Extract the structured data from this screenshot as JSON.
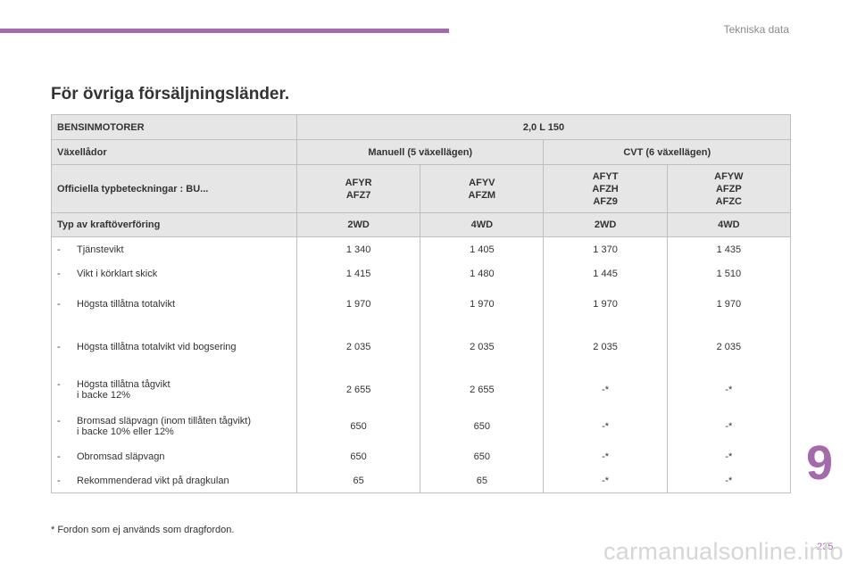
{
  "header": {
    "section": "Tekniska data"
  },
  "title": "För övriga försäljningsländer.",
  "table": {
    "engine_label": "BENSINMOTORER",
    "engine_value": "2,0 L 150",
    "gearbox_label": "Växellådor",
    "gearbox_manual": "Manuell (5 växellägen)",
    "gearbox_cvt": "CVT (6 växellägen)",
    "type_label": "Officiella typbeteckningar : BU...",
    "types": [
      "AFYR\nAFZ7",
      "AFYV\nAFZM",
      "AFYT\nAFZH\nAFZ9",
      "AFYW\nAFZP\nAFZC"
    ],
    "drive_label": "Typ av kraftöverföring",
    "drives": [
      "2WD",
      "4WD",
      "2WD",
      "4WD"
    ],
    "rows": [
      {
        "label": "Tjänstevikt",
        "values": [
          "1 340",
          "1 405",
          "1 370",
          "1 435"
        ]
      },
      {
        "label": "Vikt i körklart skick",
        "values": [
          "1 415",
          "1 480",
          "1 445",
          "1 510"
        ]
      },
      {
        "label": "Högsta tillåtna totalvikt",
        "values": [
          "1 970",
          "1 970",
          "1 970",
          "1 970"
        ]
      },
      {
        "label": "Högsta tillåtna totalvikt vid bogsering",
        "values": [
          "2 035",
          "2 035",
          "2 035",
          "2 035"
        ]
      },
      {
        "label": "Högsta tillåtna tågvikt",
        "label2": "i backe 12%",
        "values": [
          "2 655",
          "2 655",
          "-*",
          "-*"
        ]
      },
      {
        "label": "Bromsad släpvagn (inom tillåten tågvikt)",
        "label2": "i backe 10% eller 12%",
        "values": [
          "650",
          "650",
          "-*",
          "-*"
        ]
      },
      {
        "label": "Obromsad släpvagn",
        "values": [
          "650",
          "650",
          "-*",
          "-*"
        ]
      },
      {
        "label": "Rekommenderad vikt på dragkulan",
        "values": [
          "65",
          "65",
          "-*",
          "-*"
        ]
      }
    ]
  },
  "footnote": "* Fordon som ej används som dragfordon.",
  "chapter": "9",
  "page_number": "235",
  "watermark": "carmanualsonline.info"
}
